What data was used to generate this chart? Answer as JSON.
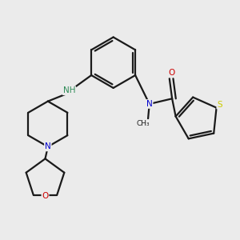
{
  "background_color": "#ebebeb",
  "bond_color": "#1a1a1a",
  "atom_colors": {
    "N": "#0000cc",
    "O": "#cc0000",
    "S": "#cccc00",
    "NH": "#2e8b57",
    "C": "#1a1a1a"
  },
  "lw": 1.6
}
